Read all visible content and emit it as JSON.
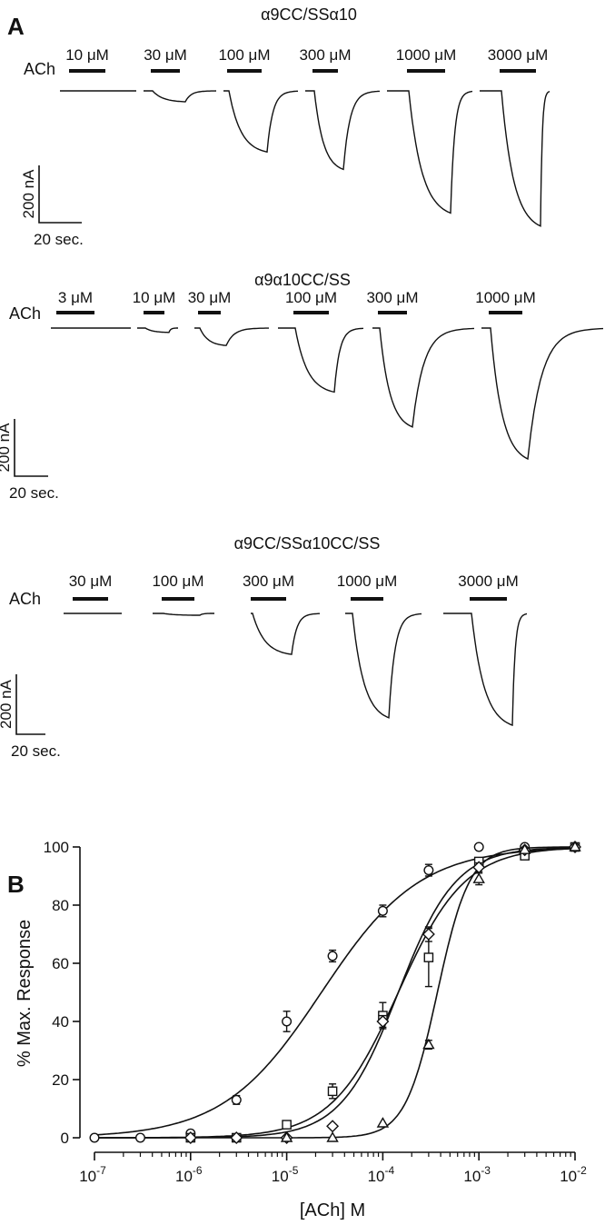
{
  "figure": {
    "panel_a_label": "A",
    "panel_b_label": "B"
  },
  "traces": {
    "agonist_label": "ACh",
    "panels": [
      {
        "title": "α9CC/SSα10",
        "scale_current": "200 nA",
        "scale_time": "20 sec.",
        "recordings": [
          {
            "concentration": "10 μM",
            "peak_nA": 0
          },
          {
            "concentration": "30 μM",
            "peak_nA": 50
          },
          {
            "concentration": "100 μM",
            "peak_nA": 280
          },
          {
            "concentration": "300 μM",
            "peak_nA": 360
          },
          {
            "concentration": "1000 μM",
            "peak_nA": 560
          },
          {
            "concentration": "3000 μM",
            "peak_nA": 620
          }
        ]
      },
      {
        "title": "α9α10CC/SS",
        "scale_current": "200 nA",
        "scale_time": "20 sec.",
        "recordings": [
          {
            "concentration": "3 μM",
            "peak_nA": 0
          },
          {
            "concentration": "10 μM",
            "peak_nA": 15
          },
          {
            "concentration": "30 μM",
            "peak_nA": 60
          },
          {
            "concentration": "100 μM",
            "peak_nA": 220
          },
          {
            "concentration": "300 μM",
            "peak_nA": 340
          },
          {
            "concentration": "1000 μM",
            "peak_nA": 450
          }
        ]
      },
      {
        "title": "α9CC/SSα10CC/SS",
        "scale_current": "200 nA",
        "scale_time": "20 sec.",
        "recordings": [
          {
            "concentration": "30 μM",
            "peak_nA": 0
          },
          {
            "concentration": "100 μM",
            "peak_nA": 5
          },
          {
            "concentration": "300 μM",
            "peak_nA": 110
          },
          {
            "concentration": "1000 μM",
            "peak_nA": 280
          },
          {
            "concentration": "3000 μM",
            "peak_nA": 300
          }
        ]
      }
    ]
  },
  "chart_data": {
    "type": "scatter",
    "xlabel": "[ACh] M",
    "ylabel": "% Max. Response",
    "xscale": "log",
    "xlim": [
      1e-07,
      0.01
    ],
    "ylim": [
      0,
      100
    ],
    "x_ticks": [
      {
        "value": 1e-07,
        "base": "10",
        "exp": "-7"
      },
      {
        "value": 1e-06,
        "base": "10",
        "exp": "-6"
      },
      {
        "value": 1e-05,
        "base": "10",
        "exp": "-5"
      },
      {
        "value": 0.0001,
        "base": "10",
        "exp": "-4"
      },
      {
        "value": 0.001,
        "base": "10",
        "exp": "-3"
      },
      {
        "value": 0.01,
        "base": "10",
        "exp": "-2"
      }
    ],
    "y_ticks": [
      0,
      20,
      40,
      60,
      80,
      100
    ],
    "series": [
      {
        "marker": "circle",
        "ec50": 2.3e-05,
        "hill": 0.85,
        "points": [
          {
            "x": 1e-07,
            "y": 0,
            "err": 0
          },
          {
            "x": 3e-07,
            "y": 0,
            "err": 0
          },
          {
            "x": 1e-06,
            "y": 1.5,
            "err": 0.5
          },
          {
            "x": 3e-06,
            "y": 13,
            "err": 1.5
          },
          {
            "x": 1e-05,
            "y": 40,
            "err": 3.5
          },
          {
            "x": 3e-05,
            "y": 62.5,
            "err": 2
          },
          {
            "x": 0.0001,
            "y": 78,
            "err": 2
          },
          {
            "x": 0.0003,
            "y": 92,
            "err": 2
          },
          {
            "x": 0.001,
            "y": 100,
            "err": 0
          },
          {
            "x": 0.003,
            "y": 100,
            "err": 0
          },
          {
            "x": 0.01,
            "y": 100,
            "err": 0
          }
        ]
      },
      {
        "marker": "square",
        "ec50": 0.000145,
        "hill": 1.25,
        "points": [
          {
            "x": 1e-06,
            "y": 0,
            "err": 0
          },
          {
            "x": 3e-06,
            "y": 0,
            "err": 0
          },
          {
            "x": 1e-05,
            "y": 4.5,
            "err": 0.5
          },
          {
            "x": 3e-05,
            "y": 16,
            "err": 2.5
          },
          {
            "x": 0.0001,
            "y": 42,
            "err": 4.5
          },
          {
            "x": 0.0003,
            "y": 62,
            "err": 10
          },
          {
            "x": 0.001,
            "y": 95,
            "err": 1
          },
          {
            "x": 0.003,
            "y": 97,
            "err": 1
          },
          {
            "x": 0.01,
            "y": 100,
            "err": 0
          }
        ]
      },
      {
        "marker": "diamond",
        "ec50": 0.000145,
        "hill": 1.45,
        "points": [
          {
            "x": 1e-06,
            "y": 0,
            "err": 0
          },
          {
            "x": 3e-06,
            "y": 0,
            "err": 0
          },
          {
            "x": 1e-05,
            "y": 0,
            "err": 0
          },
          {
            "x": 3e-05,
            "y": 4,
            "err": 0
          },
          {
            "x": 0.0001,
            "y": 40,
            "err": 2
          },
          {
            "x": 0.0003,
            "y": 70,
            "err": 2.5
          },
          {
            "x": 0.001,
            "y": 93,
            "err": 1.5
          },
          {
            "x": 0.003,
            "y": 99,
            "err": 0.5
          },
          {
            "x": 0.01,
            "y": 100,
            "err": 0
          }
        ]
      },
      {
        "marker": "triangle",
        "ec50": 0.00037,
        "hill": 2.6,
        "points": [
          {
            "x": 1e-05,
            "y": 0,
            "err": 0
          },
          {
            "x": 3e-05,
            "y": 0,
            "err": 0
          },
          {
            "x": 0.0001,
            "y": 5,
            "err": 0
          },
          {
            "x": 0.0003,
            "y": 32,
            "err": 1.5
          },
          {
            "x": 0.001,
            "y": 89,
            "err": 2
          },
          {
            "x": 0.003,
            "y": 99,
            "err": 0.5
          },
          {
            "x": 0.01,
            "y": 100,
            "err": 0
          }
        ]
      }
    ]
  }
}
